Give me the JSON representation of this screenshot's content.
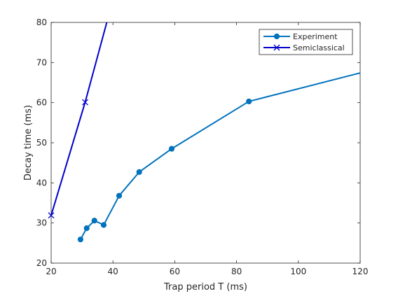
{
  "chart_data": {
    "type": "line",
    "xlabel": "Trap period T (ms)",
    "ylabel": "Decay time (ms)",
    "xlim": [
      20,
      120
    ],
    "ylim": [
      20,
      80
    ],
    "xticks": [
      20,
      40,
      60,
      80,
      100,
      120
    ],
    "yticks": [
      20,
      30,
      40,
      50,
      60,
      70,
      80
    ],
    "grid": false,
    "legend_position": "top-right",
    "series": [
      {
        "name": "Experiment",
        "color": "#0072BD",
        "marker": "circle",
        "marker_indices": [
          0,
          1,
          2,
          3,
          4,
          5,
          6,
          7
        ],
        "x": [
          29.5,
          31.5,
          34.0,
          37.0,
          42.0,
          48.5,
          59.0,
          84.0,
          120.0
        ],
        "y": [
          25.9,
          28.7,
          30.6,
          29.5,
          36.8,
          42.7,
          48.5,
          60.3,
          67.4
        ]
      },
      {
        "name": "Semiclassical",
        "color": "#0000CC",
        "marker": "x",
        "marker_indices": [
          0,
          1
        ],
        "x": [
          20.0,
          31.0,
          38.0
        ],
        "y": [
          31.9,
          60.1,
          80.0
        ]
      }
    ]
  }
}
